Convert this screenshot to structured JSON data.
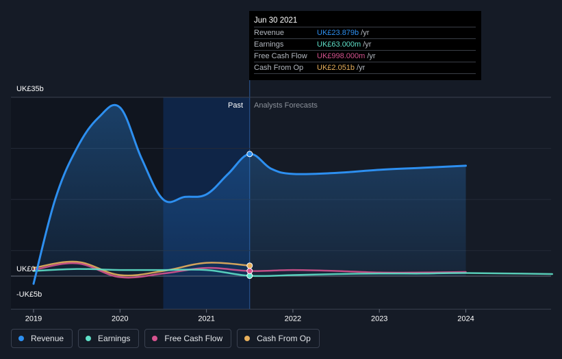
{
  "tooltip": {
    "date": "Jun 30 2021",
    "rows": [
      {
        "label": "Revenue",
        "value": "UK£23.879b",
        "unit": "/yr",
        "color": "#2d8ff0"
      },
      {
        "label": "Earnings",
        "value": "UK£63.000m",
        "unit": "/yr",
        "color": "#5fe0c8"
      },
      {
        "label": "Free Cash Flow",
        "value": "UK£998.000m",
        "unit": "/yr",
        "color": "#d6538f"
      },
      {
        "label": "Cash From Op",
        "value": "UK£2.051b",
        "unit": "/yr",
        "color": "#e8b05c"
      }
    ]
  },
  "legend": [
    {
      "label": "Revenue",
      "color": "#2d8ff0"
    },
    {
      "label": "Earnings",
      "color": "#5fe0c8"
    },
    {
      "label": "Free Cash Flow",
      "color": "#d6538f"
    },
    {
      "label": "Cash From Op",
      "color": "#e8b05c"
    }
  ],
  "chart_data": {
    "type": "line",
    "y_labels": {
      "top": "UK£35b",
      "zero": "UK£0",
      "bottom": "-UK£5b"
    },
    "ylim": [
      -5,
      35
    ],
    "xlim": [
      2019.0,
      2025.0
    ],
    "x_ticks": [
      "2019",
      "2020",
      "2021",
      "2022",
      "2023",
      "2024"
    ],
    "x_tick_values": [
      2019,
      2020,
      2021,
      2022,
      2023,
      2024
    ],
    "region_labels": {
      "past": "Past",
      "forecast": "Analysts Forecasts"
    },
    "past_end": 2021.5,
    "highlight_start": 2020.5,
    "grid": true,
    "legend_position": "bottom-left",
    "series": [
      {
        "name": "Revenue",
        "color": "#2d8ff0",
        "points": [
          [
            2019.0,
            -1.5
          ],
          [
            2019.25,
            15.0
          ],
          [
            2019.5,
            25.0
          ],
          [
            2019.75,
            31.0
          ],
          [
            2020.0,
            33.0
          ],
          [
            2020.25,
            23.0
          ],
          [
            2020.5,
            15.0
          ],
          [
            2020.75,
            15.5
          ],
          [
            2021.0,
            16.0
          ],
          [
            2021.25,
            20.0
          ],
          [
            2021.5,
            23.9
          ],
          [
            2021.75,
            21.0
          ],
          [
            2022.0,
            20.0
          ],
          [
            2022.5,
            20.2
          ],
          [
            2023.0,
            20.8
          ],
          [
            2023.5,
            21.2
          ],
          [
            2024.0,
            21.6
          ]
        ]
      },
      {
        "name": "Earnings",
        "color": "#5fe0c8",
        "points": [
          [
            2019.0,
            1.0
          ],
          [
            2019.5,
            1.4
          ],
          [
            2020.0,
            1.2
          ],
          [
            2020.5,
            1.2
          ],
          [
            2021.0,
            1.2
          ],
          [
            2021.5,
            0.063
          ],
          [
            2022.0,
            0.2
          ],
          [
            2022.5,
            0.4
          ],
          [
            2023.0,
            0.5
          ],
          [
            2023.5,
            0.5
          ],
          [
            2024.0,
            0.6
          ],
          [
            2025.0,
            0.4
          ]
        ]
      },
      {
        "name": "Free Cash Flow",
        "color": "#d6538f",
        "points": [
          [
            2019.0,
            1.2
          ],
          [
            2019.5,
            2.5
          ],
          [
            2020.0,
            -0.2
          ],
          [
            2020.5,
            0.5
          ],
          [
            2021.0,
            1.6
          ],
          [
            2021.5,
            1.0
          ],
          [
            2022.0,
            1.2
          ],
          [
            2022.5,
            1.0
          ],
          [
            2023.0,
            0.7
          ],
          [
            2023.5,
            0.7
          ],
          [
            2024.0,
            0.8
          ]
        ]
      },
      {
        "name": "Cash From Op",
        "color": "#e8b05c",
        "points": [
          [
            2019.0,
            1.6
          ],
          [
            2019.5,
            2.8
          ],
          [
            2020.0,
            0.2
          ],
          [
            2020.5,
            1.0
          ],
          [
            2021.0,
            2.6
          ],
          [
            2021.5,
            2.05
          ]
        ]
      }
    ]
  }
}
